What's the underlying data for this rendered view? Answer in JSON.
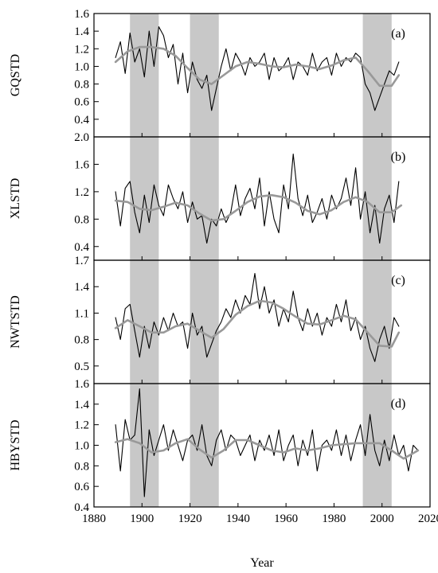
{
  "chart_data": {
    "type": "line",
    "xlabel": "Year",
    "xlim": [
      1880,
      2020
    ],
    "xticks": [
      1880,
      1900,
      1920,
      1940,
      1960,
      1980,
      2000,
      2020
    ],
    "shaded_periods": [
      [
        1895,
        1907
      ],
      [
        1920,
        1932
      ],
      [
        1992,
        2004
      ]
    ],
    "line_colors": {
      "raw": "#000000",
      "smooth": "#999999",
      "shade": "#c8c8c8"
    },
    "panels": [
      {
        "label": "(a)",
        "ylabel": "GQSTD",
        "ylim": [
          0.2,
          1.6
        ],
        "yticks": [
          0.4,
          0.6,
          0.8,
          1.0,
          1.2,
          1.4,
          1.6
        ],
        "ytick_labels": [
          "0.4",
          "0.6",
          "0.8",
          "1.0",
          "1.2",
          "1.4",
          "1.6"
        ],
        "series": [
          {
            "kind": "raw",
            "x": [
              1889,
              1891,
              1893,
              1895,
              1897,
              1899,
              1901,
              1903,
              1905,
              1907,
              1909,
              1911,
              1913,
              1915,
              1917,
              1919,
              1921,
              1923,
              1925,
              1927,
              1929,
              1931,
              1933,
              1935,
              1937,
              1939,
              1941,
              1943,
              1945,
              1947,
              1949,
              1951,
              1953,
              1955,
              1957,
              1959,
              1961,
              1963,
              1965,
              1967,
              1969,
              1971,
              1973,
              1975,
              1977,
              1979,
              1981,
              1983,
              1985,
              1987,
              1989,
              1991,
              1993,
              1995,
              1997,
              1999,
              2001,
              2003,
              2005,
              2007
            ],
            "y": [
              1.1,
              1.28,
              0.92,
              1.38,
              1.05,
              1.2,
              0.88,
              1.4,
              1.0,
              1.45,
              1.35,
              1.1,
              1.25,
              0.8,
              1.15,
              0.7,
              1.05,
              0.85,
              0.75,
              0.9,
              0.5,
              0.75,
              1.0,
              1.2,
              0.95,
              1.15,
              1.05,
              0.9,
              1.1,
              1.0,
              1.05,
              1.15,
              0.85,
              1.1,
              0.95,
              1.0,
              1.1,
              0.85,
              1.05,
              1.0,
              0.9,
              1.15,
              0.95,
              1.05,
              1.1,
              0.9,
              1.15,
              1.0,
              1.1,
              1.05,
              1.15,
              1.1,
              0.8,
              0.7,
              0.5,
              0.65,
              0.8,
              0.95,
              0.9,
              1.05
            ]
          },
          {
            "kind": "smooth",
            "x": [
              1889,
              1894,
              1899,
              1904,
              1909,
              1914,
              1919,
              1924,
              1929,
              1934,
              1939,
              1944,
              1949,
              1954,
              1959,
              1964,
              1969,
              1974,
              1979,
              1984,
              1989,
              1994,
              1999,
              2004,
              2007
            ],
            "y": [
              1.05,
              1.17,
              1.22,
              1.22,
              1.2,
              1.12,
              0.98,
              0.85,
              0.8,
              0.9,
              1.0,
              1.05,
              1.03,
              1.0,
              0.99,
              1.02,
              1.0,
              0.97,
              1.01,
              1.07,
              1.1,
              0.95,
              0.78,
              0.78,
              0.9
            ]
          }
        ]
      },
      {
        "label": "(b)",
        "ylabel": "XLSTD",
        "ylim": [
          0.2,
          2.0
        ],
        "yticks": [
          0.4,
          0.8,
          1.2,
          1.6,
          2.0
        ],
        "ytick_labels": [
          "0.4",
          "0.8",
          "1.2",
          "1.6",
          "2.0"
        ],
        "series": [
          {
            "kind": "raw",
            "x": [
              1889,
              1891,
              1893,
              1895,
              1897,
              1899,
              1901,
              1903,
              1905,
              1907,
              1909,
              1911,
              1913,
              1915,
              1917,
              1919,
              1921,
              1923,
              1925,
              1927,
              1929,
              1931,
              1933,
              1935,
              1937,
              1939,
              1941,
              1943,
              1945,
              1947,
              1949,
              1951,
              1953,
              1955,
              1957,
              1959,
              1961,
              1963,
              1965,
              1967,
              1969,
              1971,
              1973,
              1975,
              1977,
              1979,
              1981,
              1983,
              1985,
              1987,
              1989,
              1991,
              1993,
              1995,
              1997,
              1999,
              2001,
              2003,
              2005,
              2007
            ],
            "y": [
              1.2,
              0.7,
              1.25,
              1.35,
              0.9,
              0.6,
              1.15,
              0.75,
              1.3,
              1.0,
              0.85,
              1.3,
              1.1,
              0.95,
              1.2,
              0.75,
              1.05,
              0.8,
              0.85,
              0.45,
              0.8,
              0.7,
              0.95,
              0.75,
              0.9,
              1.3,
              0.85,
              1.1,
              1.25,
              0.95,
              1.4,
              0.7,
              1.2,
              0.8,
              0.6,
              1.3,
              0.95,
              1.75,
              1.1,
              0.85,
              1.15,
              0.75,
              0.9,
              1.1,
              0.8,
              1.15,
              0.95,
              1.1,
              1.4,
              1.0,
              1.55,
              0.8,
              1.2,
              0.6,
              1.0,
              0.45,
              0.95,
              1.15,
              0.75,
              1.35
            ]
          },
          {
            "kind": "smooth",
            "x": [
              1889,
              1894,
              1899,
              1904,
              1909,
              1914,
              1919,
              1924,
              1929,
              1934,
              1939,
              1944,
              1949,
              1954,
              1959,
              1964,
              1969,
              1974,
              1979,
              1984,
              1989,
              1994,
              1999,
              2004,
              2008
            ],
            "y": [
              1.07,
              1.05,
              0.95,
              0.93,
              0.98,
              1.04,
              1.0,
              0.88,
              0.78,
              0.8,
              0.92,
              1.05,
              1.13,
              1.15,
              1.12,
              1.04,
              0.92,
              0.87,
              0.93,
              1.05,
              1.12,
              1.05,
              0.9,
              0.9,
              1.0
            ]
          }
        ]
      },
      {
        "label": "(c)",
        "ylabel": "NWTSTD",
        "ylim": [
          0.3,
          1.7
        ],
        "yticks": [
          0.5,
          0.8,
          1.1,
          1.4,
          1.7
        ],
        "ytick_labels": [
          "0.5",
          "0.8",
          "1.1",
          "1.4",
          "1.7"
        ],
        "series": [
          {
            "kind": "raw",
            "x": [
              1889,
              1891,
              1893,
              1895,
              1897,
              1899,
              1901,
              1903,
              1905,
              1907,
              1909,
              1911,
              1913,
              1915,
              1917,
              1919,
              1921,
              1923,
              1925,
              1927,
              1929,
              1931,
              1933,
              1935,
              1937,
              1939,
              1941,
              1943,
              1945,
              1947,
              1949,
              1951,
              1953,
              1955,
              1957,
              1959,
              1961,
              1963,
              1965,
              1967,
              1969,
              1971,
              1973,
              1975,
              1977,
              1979,
              1981,
              1983,
              1985,
              1987,
              1989,
              1991,
              1993,
              1995,
              1997,
              1999,
              2001,
              2003,
              2005,
              2007
            ],
            "y": [
              1.05,
              0.8,
              1.15,
              1.2,
              0.9,
              0.6,
              0.95,
              0.7,
              1.0,
              0.85,
              1.05,
              0.9,
              1.1,
              0.95,
              1.0,
              0.7,
              1.1,
              0.85,
              0.95,
              0.6,
              0.75,
              0.9,
              1.0,
              1.15,
              1.05,
              1.25,
              1.1,
              1.3,
              1.2,
              1.55,
              1.15,
              1.4,
              1.1,
              1.25,
              0.95,
              1.15,
              1.0,
              1.35,
              1.05,
              0.9,
              1.15,
              0.95,
              1.1,
              0.85,
              1.05,
              0.95,
              1.2,
              1.0,
              1.25,
              0.9,
              1.05,
              0.8,
              0.95,
              0.7,
              0.55,
              0.8,
              0.95,
              0.7,
              1.05,
              0.95
            ]
          },
          {
            "kind": "smooth",
            "x": [
              1889,
              1894,
              1899,
              1904,
              1909,
              1914,
              1919,
              1924,
              1929,
              1934,
              1939,
              1944,
              1949,
              1954,
              1959,
              1964,
              1969,
              1974,
              1979,
              1984,
              1989,
              1994,
              1999,
              2004,
              2007
            ],
            "y": [
              0.93,
              1.02,
              0.95,
              0.88,
              0.88,
              0.95,
              0.98,
              0.9,
              0.82,
              0.92,
              1.08,
              1.18,
              1.24,
              1.22,
              1.15,
              1.06,
              0.98,
              0.97,
              1.02,
              1.07,
              1.03,
              0.88,
              0.73,
              0.72,
              0.88
            ]
          }
        ]
      },
      {
        "label": "(d)",
        "ylabel": "HBYSTD",
        "ylim": [
          0.4,
          1.6
        ],
        "yticks": [
          0.4,
          0.6,
          0.8,
          1.0,
          1.2,
          1.4,
          1.6
        ],
        "ytick_labels": [
          "0.4",
          "0.6",
          "0.8",
          "1.0",
          "1.2",
          "1.4",
          "1.6"
        ],
        "series": [
          {
            "kind": "raw",
            "x": [
              1889,
              1891,
              1893,
              1895,
              1897,
              1899,
              1901,
              1903,
              1905,
              1907,
              1909,
              1911,
              1913,
              1915,
              1917,
              1919,
              1921,
              1923,
              1925,
              1927,
              1929,
              1931,
              1933,
              1935,
              1937,
              1939,
              1941,
              1943,
              1945,
              1947,
              1949,
              1951,
              1953,
              1955,
              1957,
              1959,
              1961,
              1963,
              1965,
              1967,
              1969,
              1971,
              1973,
              1975,
              1977,
              1979,
              1981,
              1983,
              1985,
              1987,
              1989,
              1991,
              1993,
              1995,
              1997,
              1999,
              2001,
              2003,
              2005,
              2007,
              2009,
              2011,
              2013,
              2015
            ],
            "y": [
              1.2,
              0.75,
              1.25,
              1.05,
              1.1,
              1.55,
              0.5,
              1.15,
              0.9,
              1.05,
              1.2,
              0.95,
              1.15,
              1.0,
              0.85,
              1.05,
              1.1,
              0.95,
              1.2,
              0.9,
              0.8,
              1.05,
              1.15,
              0.95,
              1.1,
              1.05,
              0.9,
              1.0,
              1.1,
              0.85,
              1.05,
              0.95,
              1.1,
              0.9,
              1.15,
              0.85,
              1.0,
              1.1,
              0.8,
              1.05,
              0.9,
              1.15,
              0.75,
              1.0,
              1.05,
              0.95,
              1.15,
              0.9,
              1.1,
              0.85,
              1.05,
              1.2,
              0.9,
              1.3,
              0.95,
              0.8,
              1.05,
              0.85,
              1.1,
              0.9,
              1.0,
              0.75,
              1.0,
              0.95
            ]
          },
          {
            "kind": "smooth",
            "x": [
              1889,
              1894,
              1899,
              1904,
              1909,
              1914,
              1919,
              1924,
              1929,
              1934,
              1939,
              1944,
              1949,
              1954,
              1959,
              1964,
              1969,
              1974,
              1979,
              1984,
              1989,
              1994,
              1999,
              2004,
              2009,
              2015
            ],
            "y": [
              1.03,
              1.06,
              1.02,
              0.93,
              0.95,
              1.02,
              1.06,
              0.96,
              0.88,
              0.95,
              1.05,
              1.05,
              1.0,
              0.95,
              0.93,
              0.97,
              0.95,
              0.97,
              1.0,
              1.01,
              1.02,
              1.02,
              1.02,
              0.95,
              0.87,
              0.95
            ]
          }
        ]
      }
    ]
  }
}
